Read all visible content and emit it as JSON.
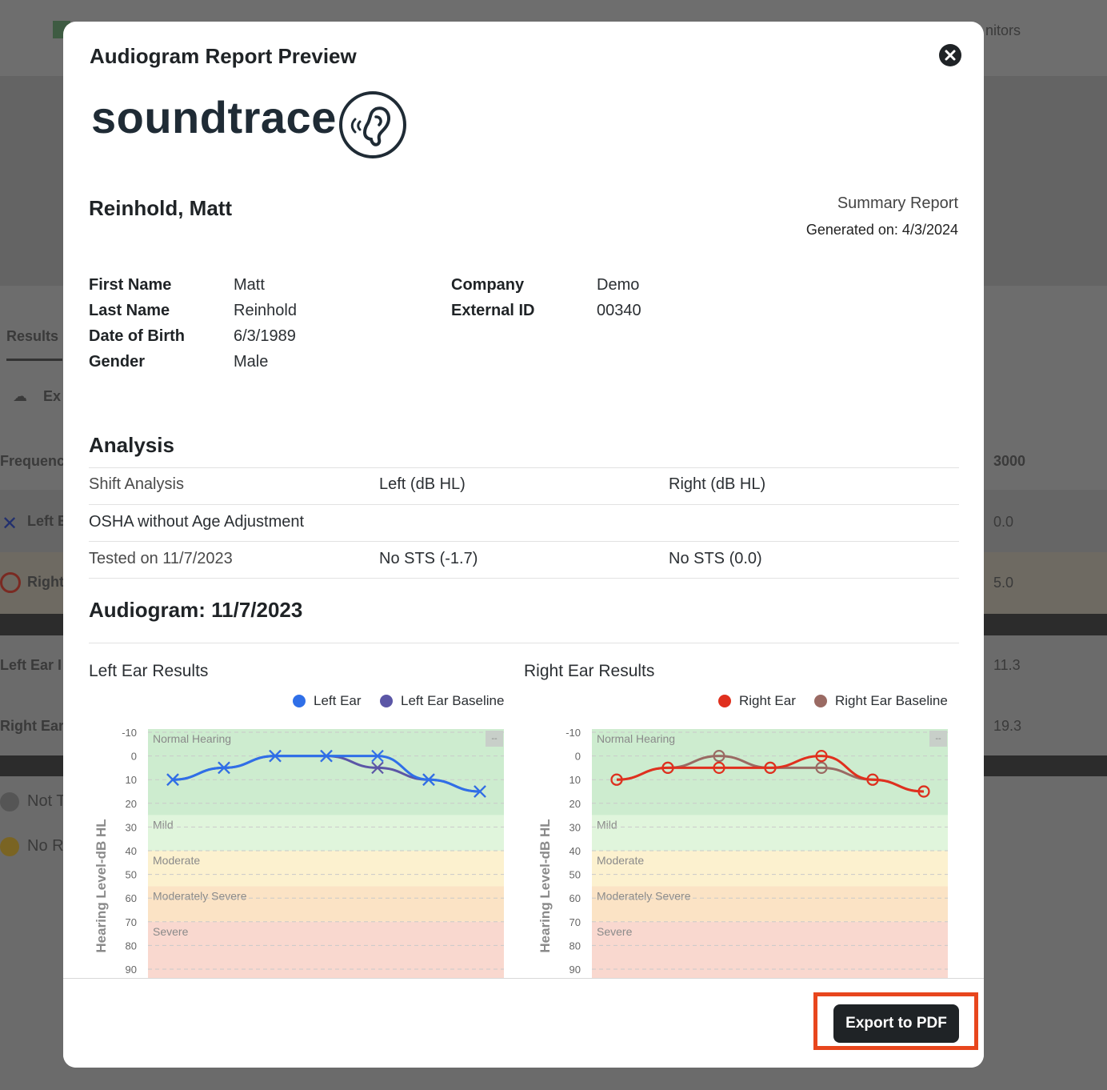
{
  "background": {
    "nav_tail": "nitors",
    "tab_results": "Results",
    "export_partial": "Ex",
    "table_header_left": "Frequenc",
    "table_header_right": "3000",
    "row_left_label": "Left E",
    "row_left_value": "0.0",
    "row_right_label": "Right",
    "row_right_value": "5.0",
    "avg_left_label": "Left Ear I",
    "avg_left_value": "11.3",
    "avg_right_label": "Right Ear",
    "avg_right_value": "19.3",
    "status_not": "Not T",
    "status_no": "No R"
  },
  "modal": {
    "title": "Audiogram Report Preview",
    "close_icon": "close-circle-icon"
  },
  "logo": {
    "text": "soundtrace",
    "icon": "ear-sound-icon"
  },
  "report": {
    "patient_name": "Reinhold, Matt",
    "type": "Summary Report",
    "generated": "Generated on: 4/3/2024"
  },
  "info": {
    "first_name_label": "First Name",
    "first_name": "Matt",
    "last_name_label": "Last Name",
    "last_name": "Reinhold",
    "dob_label": "Date of Birth",
    "dob": "6/3/1989",
    "gender_label": "Gender",
    "gender": "Male",
    "company_label": "Company",
    "company": "Demo",
    "external_id_label": "External ID",
    "external_id": "00340"
  },
  "analysis": {
    "heading": "Analysis",
    "col_shift": "Shift Analysis",
    "col_left": "Left (dB HL)",
    "col_right": "Right (dB HL)",
    "method": "OSHA without Age Adjustment",
    "tested_on": "Tested on 11/7/2023",
    "left_result": "No STS (-1.7)",
    "right_result": "No STS (0.0)"
  },
  "audiogram": {
    "heading": "Audiogram: 11/7/2023"
  },
  "chart_data": [
    {
      "type": "line",
      "title": "Left Ear Results",
      "ylabel": "Hearing Level-dB HL",
      "y_ticks": [
        "-10",
        "0",
        "10",
        "20",
        "30",
        "40",
        "50",
        "60",
        "70",
        "80",
        "90"
      ],
      "ylim": [
        -10,
        90
      ],
      "y_inverted": true,
      "bands": [
        {
          "name": "Normal Hearing",
          "from": -10,
          "to": 25,
          "color": "#cdeccf"
        },
        {
          "name": "Mild",
          "from": 25,
          "to": 40,
          "color": "#e0f5dc"
        },
        {
          "name": "Moderate",
          "from": 40,
          "to": 55,
          "color": "#fcf1cf"
        },
        {
          "name": "Moderately Severe",
          "from": 55,
          "to": 70,
          "color": "#fbe3c5"
        },
        {
          "name": "Severe",
          "from": 70,
          "to": 90,
          "color": "#f9d8cf"
        }
      ],
      "legend_placement": "top-right",
      "series": [
        {
          "name": "Left Ear",
          "color": "#2f6fe8",
          "marker": "x",
          "values": [
            10,
            5,
            0,
            0,
            0,
            10,
            15
          ]
        },
        {
          "name": "Left Ear Baseline",
          "color": "#5b56a6",
          "marker": "x",
          "values": [
            10,
            5,
            0,
            0,
            5,
            10,
            15
          ]
        }
      ]
    },
    {
      "type": "line",
      "title": "Right Ear Results",
      "ylabel": "Hearing Level-dB HL",
      "y_ticks": [
        "-10",
        "0",
        "10",
        "20",
        "30",
        "40",
        "50",
        "60",
        "70",
        "80",
        "90"
      ],
      "ylim": [
        -10,
        90
      ],
      "y_inverted": true,
      "bands": [
        {
          "name": "Normal Hearing",
          "from": -10,
          "to": 25,
          "color": "#cdeccf"
        },
        {
          "name": "Mild",
          "from": 25,
          "to": 40,
          "color": "#e0f5dc"
        },
        {
          "name": "Moderate",
          "from": 40,
          "to": 55,
          "color": "#fcf1cf"
        },
        {
          "name": "Moderately Severe",
          "from": 55,
          "to": 70,
          "color": "#fbe3c5"
        },
        {
          "name": "Severe",
          "from": 70,
          "to": 90,
          "color": "#f9d8cf"
        }
      ],
      "legend_placement": "top-right",
      "series": [
        {
          "name": "Right Ear",
          "color": "#e0301e",
          "marker": "o",
          "values": [
            10,
            5,
            5,
            5,
            0,
            10,
            15
          ]
        },
        {
          "name": "Right Ear Baseline",
          "color": "#9a6a63",
          "marker": "o",
          "values": [
            10,
            5,
            0,
            5,
            5,
            10,
            15
          ]
        }
      ]
    }
  ],
  "footer": {
    "export_label": "Export to PDF"
  }
}
